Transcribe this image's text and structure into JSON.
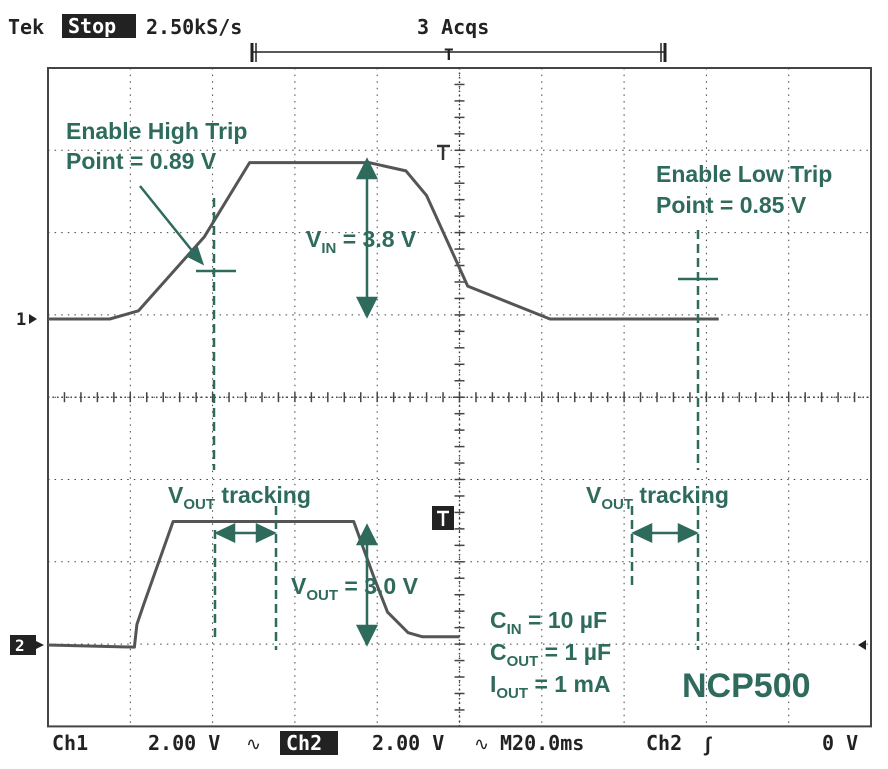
{
  "header": {
    "brand": "Tek",
    "state": "Stop",
    "sample_rate": "2.50kS/s",
    "acqs": "3 Acqs",
    "trigger_marker": "T"
  },
  "footer": {
    "ch1_label": "Ch1",
    "ch1_scale": "2.00 V",
    "ch2_label": "Ch2",
    "ch2_scale": "2.00 V",
    "timebase": "M20.0ms",
    "trigger_source": "Ch2",
    "trigger_level": "0 V"
  },
  "channel_markers": {
    "ch1": "1",
    "ch2": "2"
  },
  "annotations": {
    "enable_high_line1": "Enable High Trip",
    "enable_high_line2": "Point = 0.89 V",
    "enable_low_line1": "Enable Low Trip",
    "enable_low_line2": "Point = 0.85 V",
    "vin_main": "V",
    "vin_sub": "IN",
    "vin_value": " = 3.8 V",
    "vout_tracking_left_main": "V",
    "vout_tracking_left_sub": "OUT",
    "vout_tracking_left_rest": " tracking",
    "vout_tracking_right_main": "V",
    "vout_tracking_right_sub": "OUT",
    "vout_tracking_right_rest": " tracking",
    "vout_main": "V",
    "vout_sub": "OUT",
    "vout_value": " = 3.0 V",
    "cin_main": "C",
    "cin_sub": "IN",
    "cin_value": " = 10 µF",
    "cout_main": "C",
    "cout_sub": "OUT",
    "cout_value": " = 1 µF",
    "iout_main": "I",
    "iout_sub": "OUT",
    "iout_value": " = 1 mA",
    "part_number": "NCP500"
  },
  "colors": {
    "annotation": "#2e6b5c",
    "trace": "#555555",
    "grid": "#444444"
  },
  "chart_data": {
    "type": "line",
    "x_unit": "ms",
    "x_per_div": 20,
    "x_range": [
      0,
      200
    ],
    "series": [
      {
        "channel": "Ch1",
        "volts_per_div": 2.0,
        "x": [
          0,
          15,
          22,
          38,
          49,
          68,
          78,
          87,
          92,
          102,
          122,
          163
        ],
        "y": [
          0,
          0,
          0.2,
          2.0,
          3.8,
          3.8,
          3.8,
          3.6,
          3.0,
          0.8,
          0,
          0
        ]
      },
      {
        "channel": "Ch2",
        "volts_per_div": 2.0,
        "x": [
          0,
          21,
          21.6,
          23.3,
          30.4,
          32,
          68,
          74.3,
          79,
          82.5,
          87.5,
          91,
          100
        ],
        "y": [
          0,
          -0.05,
          0.5,
          1.0,
          3.0,
          3.0,
          3.0,
          3.0,
          1.7,
          0.8,
          0.3,
          0.2,
          0.2
        ]
      }
    ],
    "trip_points": [
      {
        "name": "Enable High Trip Point",
        "value_v": 0.89
      },
      {
        "name": "Enable Low Trip Point",
        "value_v": 0.85
      }
    ]
  }
}
